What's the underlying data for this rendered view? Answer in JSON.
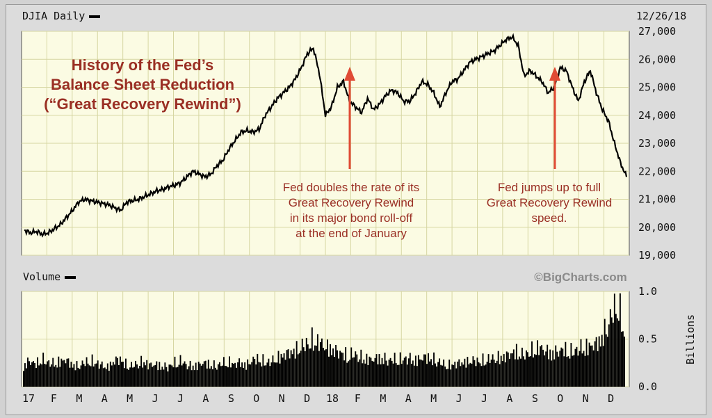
{
  "chart_data": [
    {
      "type": "line",
      "title": "DJIA Daily",
      "date_label": "12/26/18",
      "ylim": [
        19000,
        27000
      ],
      "y_ticks": [
        "19,000",
        "20,000",
        "21,000",
        "22,000",
        "23,000",
        "24,000",
        "25,000",
        "26,000",
        "27,000"
      ],
      "x_ticks": [
        "17",
        "F",
        "M",
        "A",
        "M",
        "J",
        "J",
        "A",
        "S",
        "O",
        "N",
        "D",
        "18",
        "F",
        "M",
        "A",
        "M",
        "J",
        "J",
        "A",
        "S",
        "O",
        "N",
        "D"
      ],
      "grid": true,
      "series": [
        {
          "x": [
            0,
            1,
            2,
            3,
            4,
            5,
            6,
            7,
            8,
            9,
            10,
            11,
            12,
            13,
            14,
            15,
            16,
            17,
            18,
            19,
            20,
            21,
            22,
            23,
            24,
            25,
            26,
            27,
            28,
            29,
            30,
            31,
            32,
            33,
            34,
            35,
            36,
            37,
            38,
            39,
            40,
            41,
            42,
            43,
            44,
            45,
            46,
            47,
            48,
            49,
            50,
            51,
            52,
            53,
            54,
            55,
            56,
            57,
            58,
            59,
            60,
            61,
            62,
            63,
            64,
            65,
            66,
            67,
            68,
            69,
            70,
            71,
            72,
            73,
            74,
            75,
            76,
            77,
            78,
            79,
            80,
            81,
            82,
            83,
            84,
            85,
            86,
            87,
            88,
            89,
            90,
            91,
            92,
            93,
            94,
            95,
            96,
            97,
            98,
            99,
            100
          ],
          "values": [
            19900,
            19800,
            19850,
            19750,
            19800,
            19950,
            20100,
            20350,
            20600,
            20900,
            21000,
            20950,
            20900,
            20850,
            20800,
            20700,
            20600,
            20900,
            20950,
            21000,
            21100,
            21200,
            21300,
            21350,
            21450,
            21500,
            21600,
            21800,
            22000,
            21900,
            21800,
            21900,
            22200,
            22400,
            22800,
            23100,
            23400,
            23450,
            23400,
            23500,
            24000,
            24300,
            24600,
            24800,
            25000,
            25300,
            25700,
            26200,
            26400,
            25500,
            24000,
            24300,
            25000,
            25200,
            24500,
            24300,
            24100,
            24600,
            24200,
            24400,
            24700,
            24900,
            24800,
            24500,
            24500,
            24800,
            25200,
            25100,
            24800,
            24300,
            24800,
            25200,
            25300,
            25600,
            25900,
            26000,
            26100,
            26200,
            26300,
            26500,
            26700,
            26800,
            26500,
            25400,
            25600,
            25400,
            25200,
            24800,
            25000,
            25700,
            25600,
            25000,
            24500,
            25200,
            25600,
            24800,
            24200,
            23800,
            23000,
            22300,
            21800
          ]
        }
      ]
    },
    {
      "type": "bar",
      "title": "Volume",
      "ylabel": "Billions",
      "ylim": [
        0,
        1.0
      ],
      "y_ticks": [
        "0.0",
        "0.5",
        "1.0"
      ],
      "credit": "©BigCharts.com",
      "values_note": "",
      "series": [
        {
          "values": [
            0.22,
            0.28,
            0.24,
            0.3,
            0.26,
            0.25,
            0.27,
            0.29,
            0.24,
            0.22,
            0.25,
            0.28,
            0.26,
            0.23,
            0.21,
            0.27,
            0.3,
            0.24,
            0.22,
            0.25,
            0.27,
            0.23,
            0.24,
            0.22,
            0.21,
            0.25,
            0.28,
            0.24,
            0.22,
            0.23,
            0.26,
            0.24,
            0.22,
            0.25,
            0.27,
            0.24,
            0.26,
            0.23,
            0.28,
            0.3,
            0.27,
            0.26,
            0.3,
            0.33,
            0.36,
            0.38,
            0.42,
            0.45,
            0.5,
            0.48,
            0.44,
            0.41,
            0.38,
            0.36,
            0.33,
            0.35,
            0.32,
            0.3,
            0.29,
            0.31,
            0.3,
            0.28,
            0.3,
            0.29,
            0.31,
            0.28,
            0.3,
            0.32,
            0.3,
            0.27,
            0.24,
            0.23,
            0.25,
            0.26,
            0.27,
            0.28,
            0.27,
            0.29,
            0.3,
            0.31,
            0.32,
            0.35,
            0.38,
            0.34,
            0.36,
            0.4,
            0.42,
            0.38,
            0.36,
            0.38,
            0.4,
            0.37,
            0.39,
            0.42,
            0.43,
            0.45,
            0.5,
            0.62,
            0.78,
            0.92,
            0.55
          ]
        }
      ]
    }
  ],
  "annotations": {
    "title_lines": [
      "History of the Fed’s",
      "Balance Sheet Reduction",
      "(“Great Recovery Rewind”)"
    ],
    "note1_lines": [
      "Fed doubles the rate of its",
      "Great Recovery Rewind",
      "in its major bond roll-off",
      "at the end of January"
    ],
    "note2_lines": [
      "Fed jumps up to full",
      "Great Recovery Rewind",
      "speed."
    ],
    "accent": "#e04b35",
    "text_color": "#9a2f24"
  },
  "colors": {
    "price_bg": "#fbfbe3",
    "grid": "#d6d6a2",
    "line": "#000000"
  }
}
